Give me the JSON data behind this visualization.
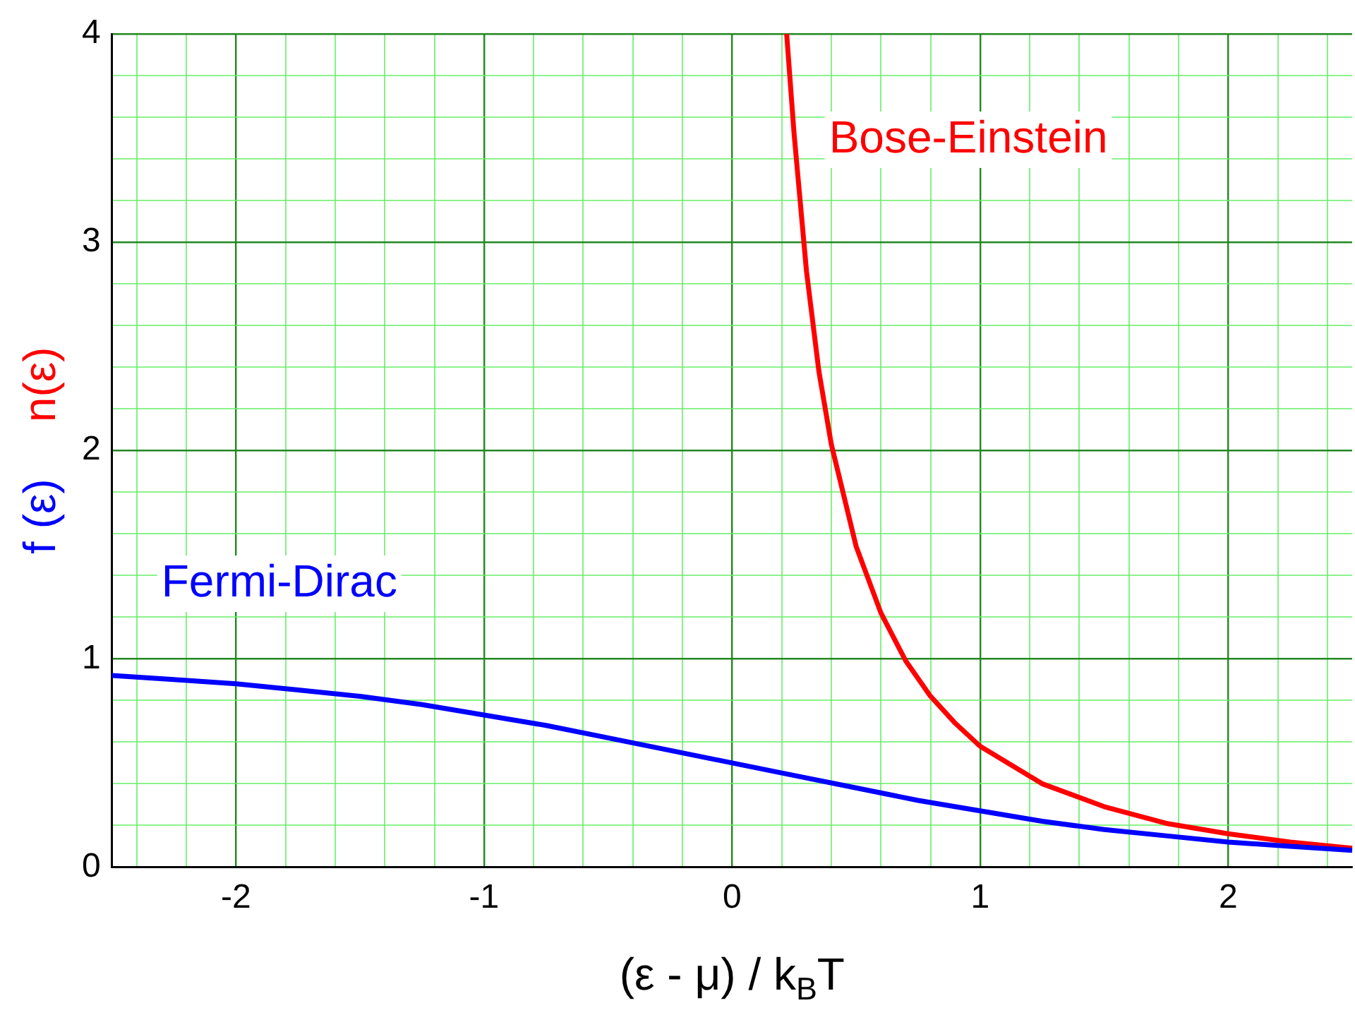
{
  "chart_data": {
    "type": "line",
    "xlabel": "(ε - μ) / k$_{B}$T",
    "ylabel": "f (ε)    n(ε)",
    "series": [
      {
        "name": "Fermi-Dirac",
        "color": "#0000ff",
        "x": [
          -2.5,
          -2.25,
          -2,
          -1.75,
          -1.5,
          -1.25,
          -1,
          -0.75,
          -0.5,
          -0.25,
          0,
          0.25,
          0.5,
          0.75,
          1,
          1.25,
          1.5,
          1.75,
          2,
          2.25,
          2.5
        ],
        "values": [
          0.92,
          0.9,
          0.88,
          0.85,
          0.82,
          0.78,
          0.73,
          0.68,
          0.62,
          0.56,
          0.5,
          0.44,
          0.38,
          0.32,
          0.27,
          0.22,
          0.18,
          0.15,
          0.12,
          0.1,
          0.08
        ]
      },
      {
        "name": "Bose-Einstein",
        "color": "#ff0000",
        "x": [
          0.22,
          0.25,
          0.3,
          0.35,
          0.4,
          0.5,
          0.6,
          0.7,
          0.8,
          0.9,
          1,
          1.25,
          1.5,
          1.75,
          2,
          2.25,
          2.5
        ],
        "values": [
          4,
          3.52,
          2.86,
          2.38,
          2.03,
          1.54,
          1.22,
          0.99,
          0.82,
          0.69,
          0.58,
          0.4,
          0.29,
          0.21,
          0.16,
          0.12,
          0.09
        ]
      }
    ],
    "xlim": [
      -2.5,
      2.5
    ],
    "xticks": [
      {
        "value": -2.4,
        "label": null
      },
      {
        "value": -2.2,
        "label": null
      },
      -2,
      {
        "value": -1.8,
        "label": null
      },
      {
        "value": -1.6,
        "label": null
      },
      {
        "value": -1.4,
        "label": null
      },
      {
        "value": -1.2,
        "label": null
      },
      -1,
      {
        "value": -0.8,
        "label": null
      },
      {
        "value": -0.6,
        "label": null
      },
      {
        "value": -0.4,
        "label": null
      },
      {
        "value": -0.2,
        "label": null
      },
      0,
      {
        "value": 0.2,
        "label": null
      },
      {
        "value": 0.4,
        "label": null
      },
      {
        "value": 0.6,
        "label": null
      },
      {
        "value": 0.8,
        "label": null
      },
      1,
      {
        "value": 1.2,
        "label": null
      },
      {
        "value": 1.4,
        "label": null
      },
      {
        "value": 1.6,
        "label": null
      },
      {
        "value": 1.8,
        "label": null
      },
      2,
      {
        "value": 2.2,
        "label": null
      },
      {
        "value": 2.4,
        "label": null
      }
    ],
    "ylim": [
      0,
      4
    ],
    "yticks": [
      0,
      {
        "value": 0.2,
        "label": null
      },
      {
        "value": 0.4,
        "label": null
      },
      {
        "value": 0.6,
        "label": null
      },
      {
        "value": 0.8,
        "label": null
      },
      1,
      {
        "value": 1.2,
        "label": null
      },
      {
        "value": 1.4,
        "label": null
      },
      {
        "value": 1.6,
        "label": null
      },
      {
        "value": 1.8,
        "label": null
      },
      2,
      {
        "value": 2.2,
        "label": null
      },
      {
        "value": 2.4,
        "label": null
      },
      {
        "value": 2.6,
        "label": null
      },
      {
        "value": 2.8,
        "label": null
      },
      3,
      {
        "value": 3.2,
        "label": null
      },
      {
        "value": 3.4,
        "label": null
      },
      {
        "value": 3.6,
        "label": null
      },
      {
        "value": 3.8,
        "label": null
      },
      4
    ],
    "grid": true,
    "marker": "none",
    "line_style": "solid",
    "legend": false
  }
}
